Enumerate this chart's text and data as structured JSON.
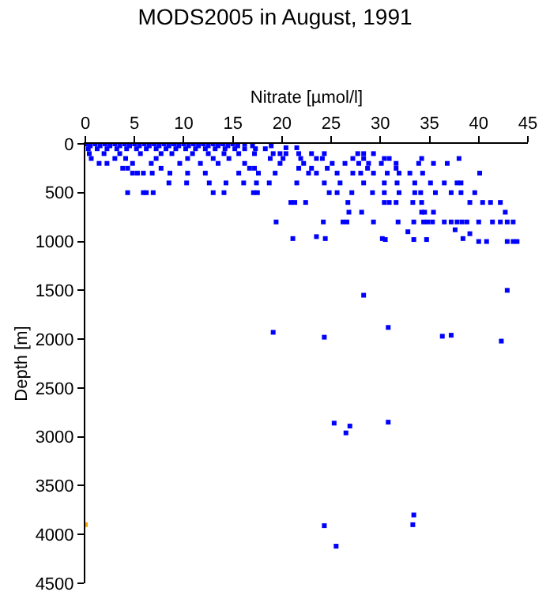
{
  "chart_data": {
    "type": "scatter",
    "title": "MODS2005 in August, 1991",
    "xlabel": "Nitrate [µmol/l]",
    "ylabel": "Depth [m]",
    "xlim": [
      0,
      45
    ],
    "xticks": [
      0,
      5,
      10,
      15,
      20,
      25,
      30,
      35,
      40,
      45
    ],
    "ylim": [
      4500,
      0
    ],
    "yticks": [
      0,
      500,
      1000,
      1500,
      2000,
      2500,
      3000,
      3500,
      4000,
      4500
    ],
    "grid": false,
    "marker": "square",
    "series": [
      {
        "color": "#0000ff",
        "x": [
          0.2,
          1.0,
          2.0,
          3.0,
          4.0,
          5.0,
          6.0,
          7.0,
          8.0,
          9.0,
          10.0,
          11.0,
          12.0,
          13.0,
          14.0,
          15.0,
          16.2,
          0.5,
          1.5,
          2.5,
          3.5,
          4.5,
          5.5,
          6.5,
          7.5,
          8.5,
          9.5,
          10.5,
          11.5,
          12.5,
          13.5,
          14.5,
          15.5,
          17.0,
          18.9,
          0.3,
          1.2,
          2.2,
          3.2,
          4.2,
          5.2,
          6.2,
          7.2,
          8.2,
          9.2,
          10.2,
          11.2,
          12.2,
          13.2,
          14.2,
          15.2,
          16.2,
          17.3,
          18.3,
          20.4,
          21.5,
          0.4,
          1.9,
          3.5,
          5.6,
          7.7,
          8.8,
          10.9,
          12.5,
          14.1,
          15.6,
          17.2,
          19.1,
          19.8,
          20.4,
          21.7,
          23.0,
          24.3,
          27.7,
          28.3,
          29.3,
          0.6,
          3.0,
          4.1,
          7.2,
          10.4,
          13.0,
          14.6,
          18.8,
          20.1,
          21.9,
          23.5,
          24.1,
          27.2,
          28.3,
          30.4,
          30.9,
          34.2,
          38.0,
          1.4,
          2.2,
          4.8,
          6.7,
          9.6,
          11.7,
          13.5,
          16.2,
          19.8,
          22.2,
          25.1,
          26.4,
          27.8,
          28.8,
          30.1,
          31.6,
          33.9,
          35.4,
          36.8,
          3.8,
          4.3,
          7.7,
          16.7,
          17.2,
          21.7,
          23.0,
          24.6,
          28.7,
          31.6,
          4.8,
          5.3,
          5.9,
          6.8,
          8.6,
          10.4,
          12.2,
          15.6,
          17.6,
          19.3,
          22.7,
          23.5,
          25.6,
          27.2,
          28.0,
          29.3,
          30.7,
          31.9,
          33.0,
          34.3,
          40.1,
          8.5,
          10.3,
          12.6,
          14.3,
          16.1,
          17.4,
          18.7,
          21.5,
          24.3,
          25.9,
          28.3,
          30.4,
          31.7,
          33.5,
          35.1,
          36.5,
          37.8,
          38.2,
          4.3,
          5.9,
          6.2,
          6.9,
          13.0,
          14.1,
          17.1,
          17.5,
          24.8,
          25.6,
          27.1,
          29.2,
          30.4,
          31.9,
          33.5,
          34.1,
          35.6,
          37.2,
          38.2,
          39.6,
          20.9,
          21.3,
          22.4,
          26.7,
          30.4,
          30.9,
          31.6,
          33.3,
          34.2,
          39.1,
          40.4,
          41.2,
          42.2,
          26.8,
          28.1,
          34.2,
          34.5,
          35.4,
          42.7,
          19.4,
          24.2,
          26.2,
          26.6,
          29.3,
          31.8,
          33.4,
          34.4,
          34.8,
          35.3,
          36.5,
          37.2,
          37.8,
          38.3,
          38.8,
          40.0,
          41.4,
          42.2,
          42.9,
          43.5,
          32.8,
          37.6,
          39.1,
          21.1,
          23.5,
          24.4,
          30.2,
          30.5,
          33.4,
          34.7,
          38.4,
          40.0,
          40.8,
          42.9,
          43.5,
          43.9,
          19.1,
          24.3,
          28.3,
          30.8,
          36.3,
          37.2,
          42.3,
          42.9,
          25.3,
          26.5,
          26.9,
          30.8,
          24.3,
          25.5,
          33.4,
          33.3
        ],
        "values": [
          0,
          0,
          0,
          0,
          0,
          0,
          0,
          0,
          0,
          0,
          0,
          0,
          0,
          0,
          0,
          0,
          0,
          20,
          20,
          20,
          20,
          20,
          20,
          20,
          20,
          20,
          20,
          20,
          20,
          20,
          20,
          20,
          20,
          20,
          20,
          50,
          50,
          50,
          50,
          50,
          50,
          50,
          50,
          50,
          50,
          50,
          50,
          50,
          50,
          50,
          50,
          50,
          50,
          50,
          40,
          40,
          100,
          100,
          100,
          100,
          100,
          100,
          100,
          100,
          100,
          100,
          100,
          100,
          100,
          100,
          100,
          100,
          100,
          100,
          100,
          100,
          150,
          150,
          150,
          150,
          150,
          150,
          150,
          150,
          150,
          150,
          150,
          150,
          150,
          150,
          150,
          150,
          150,
          150,
          200,
          200,
          200,
          200,
          200,
          200,
          200,
          200,
          200,
          200,
          200,
          200,
          200,
          200,
          200,
          200,
          200,
          200,
          200,
          250,
          250,
          250,
          250,
          250,
          250,
          250,
          250,
          250,
          250,
          300,
          300,
          300,
          300,
          300,
          300,
          300,
          300,
          300,
          300,
          300,
          300,
          300,
          300,
          300,
          300,
          300,
          300,
          300,
          300,
          300,
          400,
          400,
          400,
          400,
          400,
          400,
          400,
          400,
          400,
          400,
          400,
          400,
          400,
          400,
          400,
          400,
          400,
          400,
          500,
          500,
          500,
          500,
          500,
          500,
          500,
          500,
          500,
          500,
          500,
          500,
          500,
          500,
          500,
          500,
          500,
          500,
          500,
          500,
          600,
          600,
          600,
          600,
          600,
          600,
          600,
          600,
          600,
          600,
          600,
          600,
          600,
          700,
          700,
          700,
          700,
          700,
          700,
          800,
          800,
          800,
          800,
          800,
          800,
          800,
          800,
          800,
          800,
          800,
          800,
          800,
          800,
          800,
          800,
          800,
          800,
          800,
          800,
          900,
          880,
          920,
          970,
          950,
          970,
          970,
          980,
          980,
          980,
          970,
          1000,
          1000,
          1000,
          1000,
          1000,
          1930,
          1980,
          1550,
          1880,
          1970,
          1960,
          2020,
          1500,
          2860,
          2960,
          2890,
          2850,
          3910,
          4120,
          3800,
          3900
        ]
      },
      {
        "color": "#ffa500",
        "x": [
          0
        ],
        "values": [
          3900
        ]
      }
    ]
  }
}
